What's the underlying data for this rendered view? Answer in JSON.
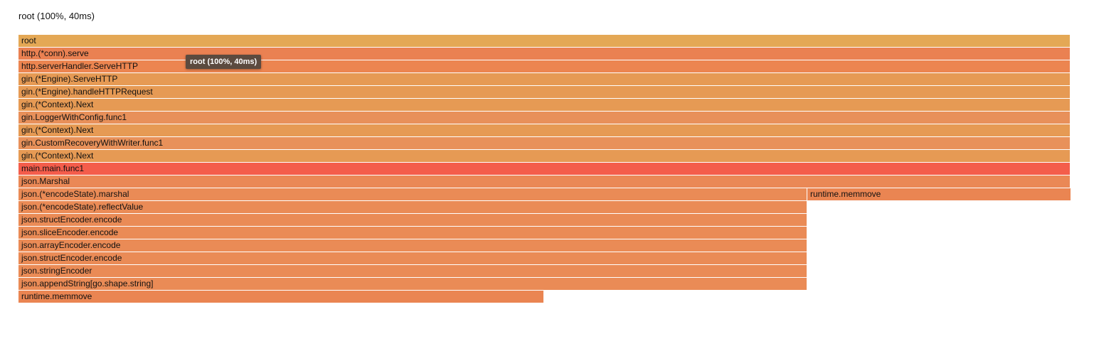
{
  "header": {
    "title": "root (100%, 40ms)"
  },
  "tooltip": {
    "text": "root (100%, 40ms)"
  },
  "flamegraph": {
    "total_ms": 40,
    "frames": [
      {
        "label": "root",
        "depth": 0,
        "start": 0,
        "share": 1.0,
        "color": "#e4a855"
      },
      {
        "label": "http.(*conn).serve",
        "depth": 1,
        "start": 0,
        "share": 1.0,
        "color": "#ea8152"
      },
      {
        "label": "http.serverHandler.ServeHTTP",
        "depth": 2,
        "start": 0,
        "share": 1.0,
        "color": "#ec8550"
      },
      {
        "label": "gin.(*Engine).ServeHTTP",
        "depth": 3,
        "start": 0,
        "share": 1.0,
        "color": "#e69a54"
      },
      {
        "label": "gin.(*Engine).handleHTTPRequest",
        "depth": 4,
        "start": 0,
        "share": 1.0,
        "color": "#e69a54"
      },
      {
        "label": "gin.(*Context).Next",
        "depth": 5,
        "start": 0,
        "share": 1.0,
        "color": "#e69a54"
      },
      {
        "label": "gin.LoggerWithConfig.func1",
        "depth": 6,
        "start": 0,
        "share": 1.0,
        "color": "#e8905a"
      },
      {
        "label": "gin.(*Context).Next",
        "depth": 7,
        "start": 0,
        "share": 1.0,
        "color": "#e69a54"
      },
      {
        "label": "gin.CustomRecoveryWithWriter.func1",
        "depth": 8,
        "start": 0,
        "share": 1.0,
        "color": "#e8915a"
      },
      {
        "label": "gin.(*Context).Next",
        "depth": 9,
        "start": 0,
        "share": 1.0,
        "color": "#e69a54"
      },
      {
        "label": "main.main.func1",
        "depth": 10,
        "start": 0,
        "share": 1.0,
        "color": "#f45d4b"
      },
      {
        "label": "json.Marshal",
        "depth": 11,
        "start": 0,
        "share": 1.0,
        "color": "#ea8856"
      },
      {
        "label": "json.(*encodeState).marshal",
        "depth": 12,
        "start": 0,
        "share": 0.75,
        "color": "#ea8b56"
      },
      {
        "label": "runtime.memmove",
        "depth": 12,
        "start": 0.75,
        "share": 0.25,
        "color": "#ea8552"
      },
      {
        "label": "json.(*encodeState).reflectValue",
        "depth": 13,
        "start": 0,
        "share": 0.75,
        "color": "#ea8b56"
      },
      {
        "label": "json.structEncoder.encode",
        "depth": 14,
        "start": 0,
        "share": 0.75,
        "color": "#ea8b56"
      },
      {
        "label": "json.sliceEncoder.encode",
        "depth": 15,
        "start": 0,
        "share": 0.75,
        "color": "#ea8b56"
      },
      {
        "label": "json.arrayEncoder.encode",
        "depth": 16,
        "start": 0,
        "share": 0.75,
        "color": "#ea8b56"
      },
      {
        "label": "json.structEncoder.encode",
        "depth": 17,
        "start": 0,
        "share": 0.75,
        "color": "#ea8b56"
      },
      {
        "label": "json.stringEncoder",
        "depth": 18,
        "start": 0,
        "share": 0.75,
        "color": "#ea8b56"
      },
      {
        "label": "json.appendString[go.shape.string]",
        "depth": 19,
        "start": 0,
        "share": 0.75,
        "color": "#ea8b56"
      },
      {
        "label": "runtime.memmove",
        "depth": 20,
        "start": 0,
        "share": 0.5,
        "color": "#ea8552"
      }
    ]
  }
}
